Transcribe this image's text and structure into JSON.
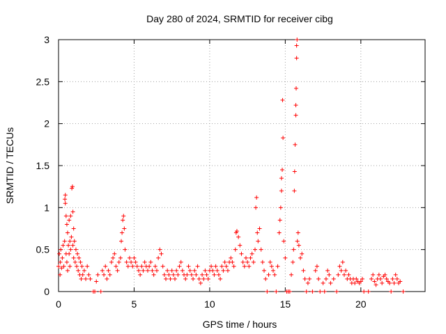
{
  "chart_data": {
    "type": "scatter",
    "title": "Day 280 of 2024, SRMTID for receiver cibg",
    "xlabel": "GPS time / hours",
    "ylabel": "SRMTID / TECUs",
    "xlim": [
      0,
      24.25
    ],
    "ylim": [
      0,
      3
    ],
    "xticks": [
      0,
      5,
      10,
      15,
      20
    ],
    "xtick_labels": [
      "0",
      "5",
      "10",
      "15",
      "20"
    ],
    "yticks": [
      0,
      0.5,
      1,
      1.5,
      2,
      2.5,
      3
    ],
    "ytick_labels": [
      "0",
      "0.5",
      "1",
      "1.5",
      "2",
      "2.5",
      "3"
    ],
    "grid": true,
    "marker": "+",
    "marker_color": "#ff0000",
    "series": [
      {
        "name": "SRMTID",
        "points": [
          [
            0.0,
            0.3
          ],
          [
            0.05,
            0.45
          ],
          [
            0.1,
            0.2
          ],
          [
            0.12,
            0.35
          ],
          [
            0.15,
            0.5
          ],
          [
            0.2,
            0.28
          ],
          [
            0.25,
            0.4
          ],
          [
            0.3,
            0.55
          ],
          [
            0.35,
            0.3
          ],
          [
            0.4,
            0.6
          ],
          [
            0.42,
            1.1
          ],
          [
            0.45,
            1.15
          ],
          [
            0.45,
            1.05
          ],
          [
            0.5,
            0.9
          ],
          [
            0.5,
            0.45
          ],
          [
            0.55,
            0.8
          ],
          [
            0.55,
            0.35
          ],
          [
            0.6,
            0.7
          ],
          [
            0.6,
            0.25
          ],
          [
            0.65,
            0.55
          ],
          [
            0.7,
            0.85
          ],
          [
            0.7,
            0.45
          ],
          [
            0.75,
            0.6
          ],
          [
            0.75,
            0.3
          ],
          [
            0.8,
            0.9
          ],
          [
            0.8,
            0.5
          ],
          [
            0.85,
            0.65
          ],
          [
            0.88,
            1.23
          ],
          [
            0.92,
            1.25
          ],
          [
            0.95,
            0.95
          ],
          [
            0.95,
            0.55
          ],
          [
            1.0,
            0.75
          ],
          [
            1.0,
            0.4
          ],
          [
            1.05,
            0.6
          ],
          [
            1.1,
            0.35
          ],
          [
            1.15,
            0.5
          ],
          [
            1.2,
            0.3
          ],
          [
            1.25,
            0.45
          ],
          [
            1.3,
            0.25
          ],
          [
            1.35,
            0.4
          ],
          [
            1.4,
            0.2
          ],
          [
            1.45,
            0.35
          ],
          [
            1.5,
            0.15
          ],
          [
            1.55,
            0.3
          ],
          [
            1.6,
            0.2
          ],
          [
            1.7,
            0.25
          ],
          [
            1.8,
            0.15
          ],
          [
            1.9,
            0.3
          ],
          [
            2.0,
            0.2
          ],
          [
            2.1,
            0.15
          ],
          [
            2.3,
            0.0
          ],
          [
            2.4,
            0.0
          ],
          [
            2.5,
            0.12
          ],
          [
            2.6,
            0.2
          ],
          [
            2.8,
            0.0
          ],
          [
            2.9,
            0.25
          ],
          [
            3.0,
            0.2
          ],
          [
            3.1,
            0.3
          ],
          [
            3.2,
            0.15
          ],
          [
            3.3,
            0.25
          ],
          [
            3.4,
            0.2
          ],
          [
            3.5,
            0.35
          ],
          [
            3.6,
            0.4
          ],
          [
            3.7,
            0.45
          ],
          [
            3.8,
            0.3
          ],
          [
            3.9,
            0.25
          ],
          [
            4.0,
            0.35
          ],
          [
            4.1,
            0.4
          ],
          [
            4.15,
            0.6
          ],
          [
            4.2,
            0.7
          ],
          [
            4.25,
            0.85
          ],
          [
            4.3,
            0.9
          ],
          [
            4.35,
            0.75
          ],
          [
            4.4,
            0.5
          ],
          [
            4.5,
            0.35
          ],
          [
            4.6,
            0.3
          ],
          [
            4.7,
            0.4
          ],
          [
            4.8,
            0.35
          ],
          [
            4.9,
            0.3
          ],
          [
            5.0,
            0.4
          ],
          [
            5.1,
            0.35
          ],
          [
            5.2,
            0.3
          ],
          [
            5.3,
            0.25
          ],
          [
            5.4,
            0.2
          ],
          [
            5.5,
            0.3
          ],
          [
            5.6,
            0.25
          ],
          [
            5.7,
            0.35
          ],
          [
            5.8,
            0.3
          ],
          [
            5.9,
            0.25
          ],
          [
            6.0,
            0.3
          ],
          [
            6.1,
            0.35
          ],
          [
            6.2,
            0.25
          ],
          [
            6.3,
            0.2
          ],
          [
            6.4,
            0.3
          ],
          [
            6.5,
            0.25
          ],
          [
            6.6,
            0.4
          ],
          [
            6.7,
            0.5
          ],
          [
            6.8,
            0.45
          ],
          [
            6.9,
            0.3
          ],
          [
            7.0,
            0.2
          ],
          [
            7.1,
            0.15
          ],
          [
            7.2,
            0.25
          ],
          [
            7.3,
            0.2
          ],
          [
            7.4,
            0.15
          ],
          [
            7.5,
            0.25
          ],
          [
            7.6,
            0.2
          ],
          [
            7.7,
            0.15
          ],
          [
            7.8,
            0.25
          ],
          [
            7.9,
            0.2
          ],
          [
            8.0,
            0.3
          ],
          [
            8.1,
            0.35
          ],
          [
            8.2,
            0.25
          ],
          [
            8.3,
            0.2
          ],
          [
            8.4,
            0.15
          ],
          [
            8.5,
            0.2
          ],
          [
            8.6,
            0.3
          ],
          [
            8.7,
            0.25
          ],
          [
            8.8,
            0.2
          ],
          [
            8.9,
            0.15
          ],
          [
            9.0,
            0.25
          ],
          [
            9.1,
            0.2
          ],
          [
            9.2,
            0.3
          ],
          [
            9.3,
            0.15
          ],
          [
            9.4,
            0.1
          ],
          [
            9.5,
            0.2
          ],
          [
            9.6,
            0.15
          ],
          [
            9.7,
            0.25
          ],
          [
            9.8,
            0.2
          ],
          [
            9.9,
            0.15
          ],
          [
            10.0,
            0.25
          ],
          [
            10.1,
            0.3
          ],
          [
            10.2,
            0.25
          ],
          [
            10.3,
            0.2
          ],
          [
            10.4,
            0.3
          ],
          [
            10.5,
            0.25
          ],
          [
            10.6,
            0.2
          ],
          [
            10.7,
            0.15
          ],
          [
            10.8,
            0.3
          ],
          [
            10.9,
            0.25
          ],
          [
            11.0,
            0.35
          ],
          [
            11.1,
            0.3
          ],
          [
            11.2,
            0.25
          ],
          [
            11.3,
            0.35
          ],
          [
            11.4,
            0.4
          ],
          [
            11.5,
            0.35
          ],
          [
            11.6,
            0.3
          ],
          [
            11.7,
            0.5
          ],
          [
            11.75,
            0.7
          ],
          [
            11.8,
            0.72
          ],
          [
            11.9,
            0.65
          ],
          [
            12.0,
            0.55
          ],
          [
            12.1,
            0.45
          ],
          [
            12.2,
            0.35
          ],
          [
            12.3,
            0.3
          ],
          [
            12.4,
            0.4
          ],
          [
            12.5,
            0.35
          ],
          [
            12.6,
            0.3
          ],
          [
            12.7,
            0.4
          ],
          [
            12.8,
            0.45
          ],
          [
            12.9,
            0.35
          ],
          [
            13.0,
            0.5
          ],
          [
            13.05,
            1.0
          ],
          [
            13.1,
            1.12
          ],
          [
            13.15,
            0.7
          ],
          [
            13.2,
            0.6
          ],
          [
            13.3,
            0.75
          ],
          [
            13.4,
            0.5
          ],
          [
            13.5,
            0.35
          ],
          [
            13.6,
            0.25
          ],
          [
            13.7,
            0.15
          ],
          [
            13.8,
            0.0
          ],
          [
            13.9,
            0.2
          ],
          [
            14.0,
            0.35
          ],
          [
            14.1,
            0.3
          ],
          [
            14.2,
            0.25
          ],
          [
            14.3,
            0.2
          ],
          [
            14.4,
            0.0
          ],
          [
            14.5,
            0.3
          ],
          [
            14.6,
            0.7
          ],
          [
            14.65,
            0.85
          ],
          [
            14.7,
            1.0
          ],
          [
            14.75,
            1.2
          ],
          [
            14.75,
            1.35
          ],
          [
            14.8,
            1.45
          ],
          [
            14.82,
            2.28
          ],
          [
            14.85,
            1.83
          ],
          [
            14.9,
            0.6
          ],
          [
            15.0,
            0.4
          ],
          [
            15.1,
            0.0
          ],
          [
            15.2,
            0.0
          ],
          [
            15.3,
            0.0
          ],
          [
            15.4,
            0.2
          ],
          [
            15.5,
            0.35
          ],
          [
            15.55,
            0.5
          ],
          [
            15.6,
            1.2
          ],
          [
            15.62,
            1.43
          ],
          [
            15.65,
            1.75
          ],
          [
            15.7,
            2.1
          ],
          [
            15.7,
            2.22
          ],
          [
            15.72,
            2.42
          ],
          [
            15.75,
            2.78
          ],
          [
            15.75,
            2.93
          ],
          [
            15.78,
            3.0
          ],
          [
            15.8,
            0.6
          ],
          [
            15.85,
            0.7
          ],
          [
            15.9,
            0.55
          ],
          [
            16.0,
            0.4
          ],
          [
            16.1,
            0.45
          ],
          [
            16.2,
            0.25
          ],
          [
            16.3,
            0.15
          ],
          [
            16.4,
            0.0
          ],
          [
            16.5,
            0.1
          ],
          [
            16.6,
            0.15
          ],
          [
            16.8,
            0.0
          ],
          [
            17.0,
            0.25
          ],
          [
            17.1,
            0.3
          ],
          [
            17.2,
            0.15
          ],
          [
            17.3,
            0.0
          ],
          [
            17.5,
            0.1
          ],
          [
            17.6,
            0.0
          ],
          [
            17.7,
            0.15
          ],
          [
            17.8,
            0.25
          ],
          [
            17.9,
            0.2
          ],
          [
            18.0,
            0.1
          ],
          [
            18.2,
            0.15
          ],
          [
            18.4,
            0.0
          ],
          [
            18.5,
            0.2
          ],
          [
            18.6,
            0.3
          ],
          [
            18.7,
            0.25
          ],
          [
            18.8,
            0.35
          ],
          [
            18.9,
            0.2
          ],
          [
            19.0,
            0.25
          ],
          [
            19.1,
            0.15
          ],
          [
            19.2,
            0.2
          ],
          [
            19.3,
            0.15
          ],
          [
            19.4,
            0.1
          ],
          [
            19.5,
            0.15
          ],
          [
            19.6,
            0.1
          ],
          [
            19.7,
            0.15
          ],
          [
            19.8,
            0.12
          ],
          [
            19.9,
            0.1
          ],
          [
            20.0,
            0.12
          ],
          [
            20.1,
            0.15
          ],
          [
            20.2,
            0.0
          ],
          [
            20.5,
            0.0
          ],
          [
            20.7,
            0.15
          ],
          [
            20.8,
            0.2
          ],
          [
            20.9,
            0.12
          ],
          [
            21.0,
            0.08
          ],
          [
            21.1,
            0.15
          ],
          [
            21.2,
            0.2
          ],
          [
            21.3,
            0.15
          ],
          [
            21.4,
            0.1
          ],
          [
            21.5,
            0.18
          ],
          [
            21.6,
            0.2
          ],
          [
            21.7,
            0.15
          ],
          [
            21.8,
            0.12
          ],
          [
            21.9,
            0.1
          ],
          [
            22.0,
            0.0
          ],
          [
            22.1,
            0.15
          ],
          [
            22.2,
            0.1
          ],
          [
            22.3,
            0.2
          ],
          [
            22.4,
            0.15
          ],
          [
            22.5,
            0.1
          ],
          [
            22.6,
            0.12
          ],
          [
            22.8,
            0.0
          ]
        ]
      }
    ]
  }
}
